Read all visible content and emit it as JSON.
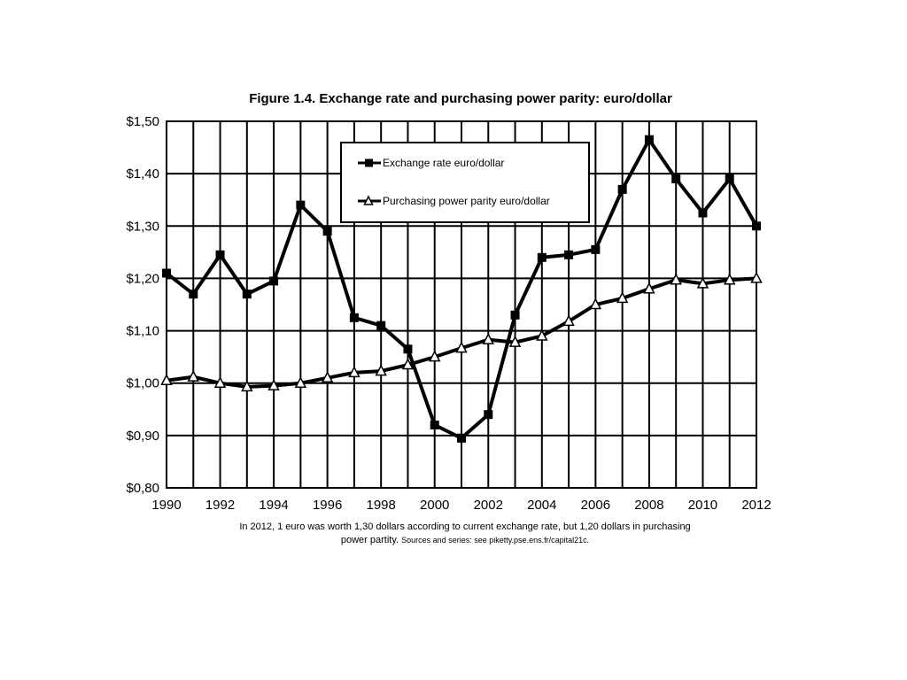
{
  "chart_data": {
    "type": "line",
    "title": "Figure 1.4. Exchange rate and purchasing power parity: euro/dollar",
    "xlabel": "",
    "ylabel": "",
    "x": [
      1990,
      1991,
      1992,
      1993,
      1994,
      1995,
      1996,
      1997,
      1998,
      1999,
      2000,
      2001,
      2002,
      2003,
      2004,
      2005,
      2006,
      2007,
      2008,
      2009,
      2010,
      2011,
      2012
    ],
    "ylim": [
      0.8,
      1.5
    ],
    "xlim": [
      1990,
      2012
    ],
    "grid": true,
    "legend_position": "top-center",
    "x_tick_labels": [
      "1990",
      "1992",
      "1994",
      "1996",
      "1998",
      "2000",
      "2002",
      "2004",
      "2006",
      "2008",
      "2010",
      "2012"
    ],
    "y_tick_labels": [
      "$1,50",
      "$1,40",
      "$1,30",
      "$1,20",
      "$1,10",
      "$1,00",
      "$0,90",
      "$0,80"
    ],
    "series": [
      {
        "name": "Exchange rate euro/dollar",
        "marker": "square",
        "color": "#000000",
        "values": [
          1.21,
          1.17,
          1.245,
          1.17,
          1.195,
          1.34,
          1.29,
          1.125,
          1.11,
          1.065,
          0.92,
          0.895,
          0.94,
          1.13,
          1.24,
          1.245,
          1.255,
          1.37,
          1.465,
          1.39,
          1.325,
          1.39,
          1.3
        ]
      },
      {
        "name": "Purchasing power parity euro/dollar",
        "marker": "triangle-open",
        "color": "#000000",
        "values": [
          1.005,
          1.012,
          1.0,
          0.993,
          0.995,
          1.0,
          1.01,
          1.02,
          1.023,
          1.035,
          1.05,
          1.067,
          1.083,
          1.078,
          1.09,
          1.118,
          1.15,
          1.162,
          1.18,
          1.197,
          1.19,
          1.197,
          1.2
        ]
      }
    ]
  },
  "footnote": {
    "line1": "In 2012, 1 euro was worth 1,30 dollars according to current exchange rate, but 1,20 dollars in purchasing",
    "line2": "power partity.",
    "sources": "Sources and series: see piketty.pse.ens.fr/capital21c."
  }
}
